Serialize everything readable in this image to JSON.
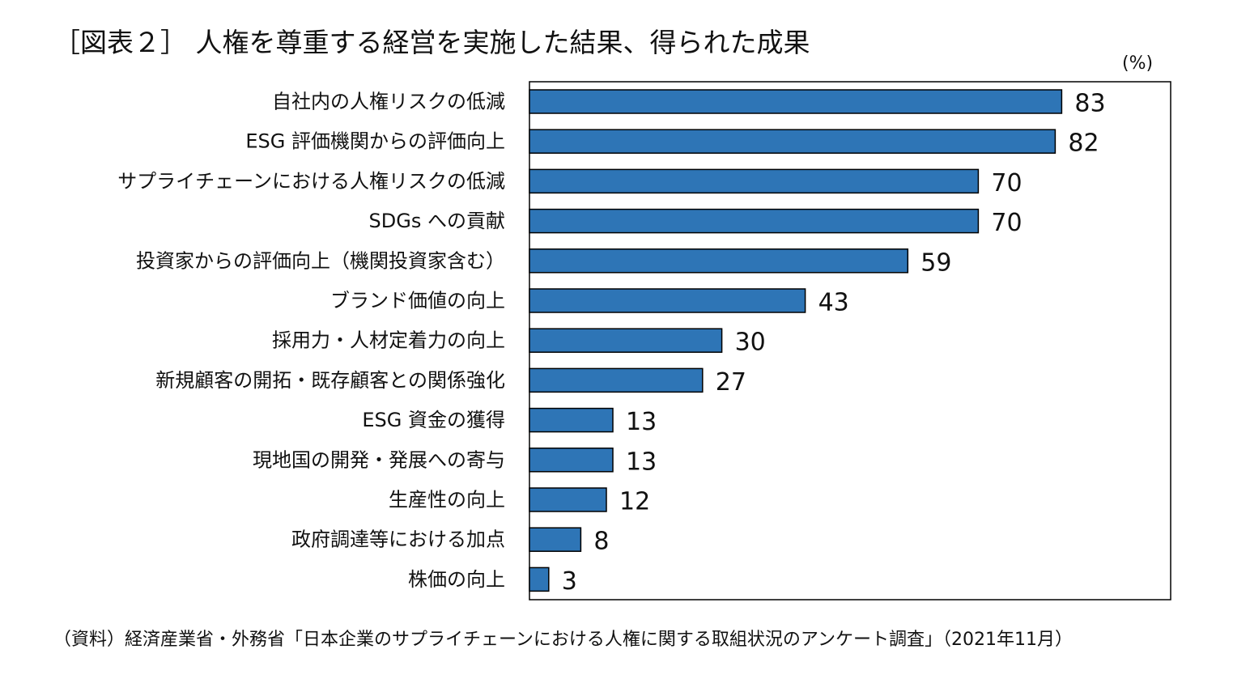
{
  "chart_data": {
    "type": "bar",
    "orientation": "horizontal",
    "title": "［図表２］ 人権を尊重する経営を実施した結果、得られた成果",
    "unit": "(%)",
    "source": "（資料）経済産業省・外務省「日本企業のサプライチェーンにおける人権に関する取組状況のアンケート調査」（2021年11月）",
    "categories": [
      "自社内の人権リスクの低減",
      "ESG 評価機関からの評価向上",
      "サプライチェーンにおける人権リスクの低減",
      "SDGs への貢献",
      "投資家からの評価向上（機関投資家含む）",
      "ブランド価値の向上",
      "採用力・人材定着力の向上",
      "新規顧客の開拓・既存顧客との関係強化",
      "ESG 資金の獲得",
      "現地国の開発・発展への寄与",
      "生産性の向上",
      "政府調達等における加点",
      "株価の向上"
    ],
    "values": [
      83,
      82,
      70,
      70,
      59,
      43,
      30,
      27,
      13,
      13,
      12,
      8,
      3
    ],
    "xlim": [
      0,
      100
    ],
    "bar_color": "#2e75b6",
    "bar_edge_color": "#000000",
    "data_labels": true,
    "grid": false,
    "legend": "none"
  }
}
